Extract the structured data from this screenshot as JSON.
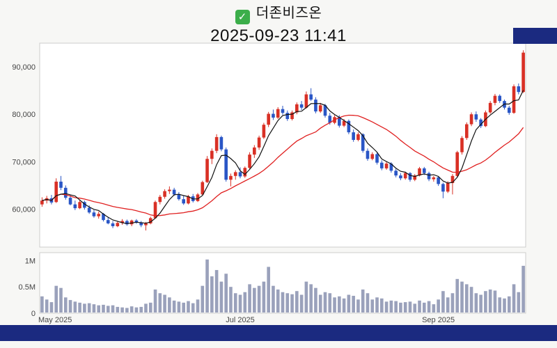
{
  "page": {
    "background": "#f7f7f5",
    "chrome_color": "#1b2a80"
  },
  "header": {
    "check_icon": "✓",
    "check_color": "#3cae4a",
    "title": "더존비즈온",
    "timestamp": "2025-09-23 11:41"
  },
  "chart_data": {
    "type": "candlestick",
    "title": "더존비즈온",
    "subtitle": "2025-09-23 11:41",
    "legend_position": "none",
    "grid": false,
    "up_color": "#d93025",
    "down_color": "#2a56c6",
    "ma_short_color": "#111111",
    "ma_long_color": "#e02020",
    "ma_short_window": 5,
    "ma_long_window": 20,
    "volume_color": "#9aa1bb",
    "plot_bg": "#ffffff",
    "plot_border": "#cccccc",
    "axis_text_color": "#444444",
    "y_axis": {
      "ticks": [
        60000,
        70000,
        80000,
        90000
      ],
      "labels": [
        "60,000",
        "70,000",
        "80,000",
        "90,000"
      ],
      "range": [
        52000,
        95000
      ]
    },
    "volume_axis": {
      "ticks": [
        0,
        500000,
        1000000
      ],
      "labels": [
        "0",
        "0.5M",
        "1M"
      ],
      "range": [
        0,
        1150000
      ]
    },
    "x_axis": {
      "ticks": [
        {
          "index": 0,
          "label": "May 2025"
        },
        {
          "index": 42,
          "label": "Jul 2025"
        },
        {
          "index": 84,
          "label": "Sep 2025"
        }
      ]
    },
    "candle_fields": [
      "open",
      "high",
      "low",
      "close",
      "volume"
    ],
    "candles": [
      [
        61000,
        62500,
        60500,
        61800,
        320000
      ],
      [
        61800,
        62800,
        61200,
        62300,
        260000
      ],
      [
        62300,
        63000,
        61000,
        61400,
        210000
      ],
      [
        61500,
        66500,
        61300,
        65800,
        520000
      ],
      [
        65800,
        67000,
        64000,
        64500,
        480000
      ],
      [
        64500,
        65000,
        62000,
        62400,
        300000
      ],
      [
        62400,
        63000,
        60800,
        61000,
        250000
      ],
      [
        61000,
        61800,
        59800,
        60200,
        220000
      ],
      [
        60200,
        62000,
        60000,
        61500,
        200000
      ],
      [
        61500,
        61800,
        59900,
        60300,
        180000
      ],
      [
        60300,
        60800,
        59000,
        59300,
        190000
      ],
      [
        59300,
        59800,
        58200,
        58500,
        170000
      ],
      [
        58500,
        59500,
        58000,
        59000,
        150000
      ],
      [
        59000,
        59200,
        57400,
        57700,
        160000
      ],
      [
        57700,
        58300,
        56800,
        57000,
        140000
      ],
      [
        57000,
        57500,
        56000,
        56400,
        150000
      ],
      [
        56400,
        57400,
        56200,
        57100,
        120000
      ],
      [
        57100,
        57900,
        56700,
        57500,
        110000
      ],
      [
        57500,
        57800,
        56500,
        56800,
        100000
      ],
      [
        56800,
        57800,
        56400,
        57600,
        130000
      ],
      [
        57600,
        57900,
        56900,
        57200,
        110000
      ],
      [
        57200,
        57500,
        56200,
        56600,
        120000
      ],
      [
        56600,
        57300,
        55500,
        57000,
        180000
      ],
      [
        57000,
        58400,
        56800,
        58100,
        200000
      ],
      [
        58100,
        61800,
        58000,
        61500,
        450000
      ],
      [
        61500,
        63000,
        61000,
        62600,
        380000
      ],
      [
        62600,
        64200,
        62200,
        63800,
        350000
      ],
      [
        63800,
        64800,
        63200,
        64100,
        300000
      ],
      [
        64100,
        64500,
        62800,
        63100,
        240000
      ],
      [
        63100,
        63600,
        61800,
        62100,
        220000
      ],
      [
        62100,
        62800,
        60900,
        61200,
        200000
      ],
      [
        61200,
        63000,
        61000,
        62700,
        230000
      ],
      [
        62700,
        63200,
        61400,
        61700,
        190000
      ],
      [
        61700,
        63400,
        61500,
        63100,
        260000
      ],
      [
        63100,
        66000,
        63000,
        65700,
        520000
      ],
      [
        65700,
        71200,
        65500,
        70600,
        1020000
      ],
      [
        70600,
        72800,
        69500,
        72300,
        700000
      ],
      [
        72300,
        75800,
        71800,
        75200,
        820000
      ],
      [
        75200,
        75500,
        72200,
        72600,
        600000
      ],
      [
        72600,
        73000,
        65800,
        66200,
        750000
      ],
      [
        66200,
        67500,
        64800,
        67000,
        500000
      ],
      [
        67000,
        68200,
        66200,
        67800,
        380000
      ],
      [
        67800,
        68800,
        66500,
        66900,
        350000
      ],
      [
        66900,
        69000,
        66600,
        68700,
        400000
      ],
      [
        68700,
        72000,
        68400,
        71500,
        550000
      ],
      [
        71500,
        73500,
        70800,
        73000,
        480000
      ],
      [
        73000,
        75500,
        72500,
        75100,
        520000
      ],
      [
        75100,
        78200,
        74800,
        77800,
        600000
      ],
      [
        77800,
        80500,
        77300,
        80100,
        880000
      ],
      [
        80100,
        81000,
        78800,
        79300,
        520000
      ],
      [
        79300,
        81500,
        79000,
        81100,
        450000
      ],
      [
        81100,
        81800,
        79900,
        80300,
        400000
      ],
      [
        80300,
        80800,
        78600,
        79000,
        380000
      ],
      [
        79000,
        80800,
        78700,
        80400,
        360000
      ],
      [
        80400,
        82500,
        80000,
        82100,
        420000
      ],
      [
        82100,
        82800,
        80900,
        81400,
        350000
      ],
      [
        81400,
        84800,
        81200,
        84200,
        600000
      ],
      [
        84200,
        85500,
        82800,
        83100,
        550000
      ],
      [
        83100,
        83600,
        80200,
        80600,
        480000
      ],
      [
        80600,
        82400,
        80300,
        81900,
        350000
      ],
      [
        81900,
        82200,
        79300,
        79700,
        400000
      ],
      [
        79700,
        80300,
        77800,
        78200,
        380000
      ],
      [
        78200,
        79800,
        77900,
        79400,
        300000
      ],
      [
        79400,
        79800,
        77200,
        77600,
        320000
      ],
      [
        77600,
        79000,
        77300,
        78600,
        280000
      ],
      [
        78600,
        78900,
        75800,
        76200,
        350000
      ],
      [
        76200,
        76800,
        74200,
        74600,
        330000
      ],
      [
        74600,
        76200,
        74300,
        75800,
        260000
      ],
      [
        75800,
        76000,
        71900,
        72300,
        450000
      ],
      [
        72300,
        72800,
        70200,
        70600,
        380000
      ],
      [
        70600,
        72000,
        70300,
        71600,
        260000
      ],
      [
        71600,
        71900,
        69400,
        69800,
        300000
      ],
      [
        69800,
        70300,
        68200,
        68600,
        280000
      ],
      [
        68600,
        70000,
        68300,
        69600,
        220000
      ],
      [
        69600,
        69900,
        67700,
        68100,
        240000
      ],
      [
        68100,
        68500,
        66700,
        67100,
        230000
      ],
      [
        67100,
        67600,
        66100,
        66500,
        200000
      ],
      [
        66500,
        67900,
        66200,
        67600,
        210000
      ],
      [
        67600,
        67800,
        65800,
        66200,
        220000
      ],
      [
        66200,
        67400,
        65900,
        67100,
        180000
      ],
      [
        67100,
        68900,
        66900,
        68600,
        240000
      ],
      [
        68600,
        68900,
        67200,
        67600,
        200000
      ],
      [
        67600,
        67900,
        65900,
        66300,
        230000
      ],
      [
        66300,
        67000,
        65800,
        66700,
        170000
      ],
      [
        66700,
        67000,
        64900,
        65300,
        260000
      ],
      [
        65300,
        65600,
        62300,
        63700,
        420000
      ],
      [
        63700,
        65900,
        63400,
        65500,
        300000
      ],
      [
        65500,
        67400,
        63100,
        67000,
        380000
      ],
      [
        67000,
        72300,
        66800,
        72000,
        650000
      ],
      [
        72000,
        75400,
        71500,
        75000,
        600000
      ],
      [
        75000,
        78300,
        74600,
        77900,
        550000
      ],
      [
        77900,
        80400,
        77500,
        80000,
        500000
      ],
      [
        80000,
        80600,
        78400,
        78900,
        380000
      ],
      [
        78900,
        79200,
        77100,
        77500,
        350000
      ],
      [
        77500,
        80800,
        77300,
        80400,
        420000
      ],
      [
        80400,
        82800,
        80100,
        82400,
        450000
      ],
      [
        82400,
        84300,
        81900,
        83900,
        430000
      ],
      [
        83900,
        84200,
        82400,
        82800,
        300000
      ],
      [
        82800,
        83100,
        81000,
        81400,
        280000
      ],
      [
        81400,
        81800,
        79900,
        80300,
        320000
      ],
      [
        80300,
        86300,
        80100,
        85900,
        550000
      ],
      [
        85900,
        86500,
        84200,
        84700,
        400000
      ],
      [
        84700,
        93500,
        84500,
        93000,
        900000
      ]
    ]
  }
}
